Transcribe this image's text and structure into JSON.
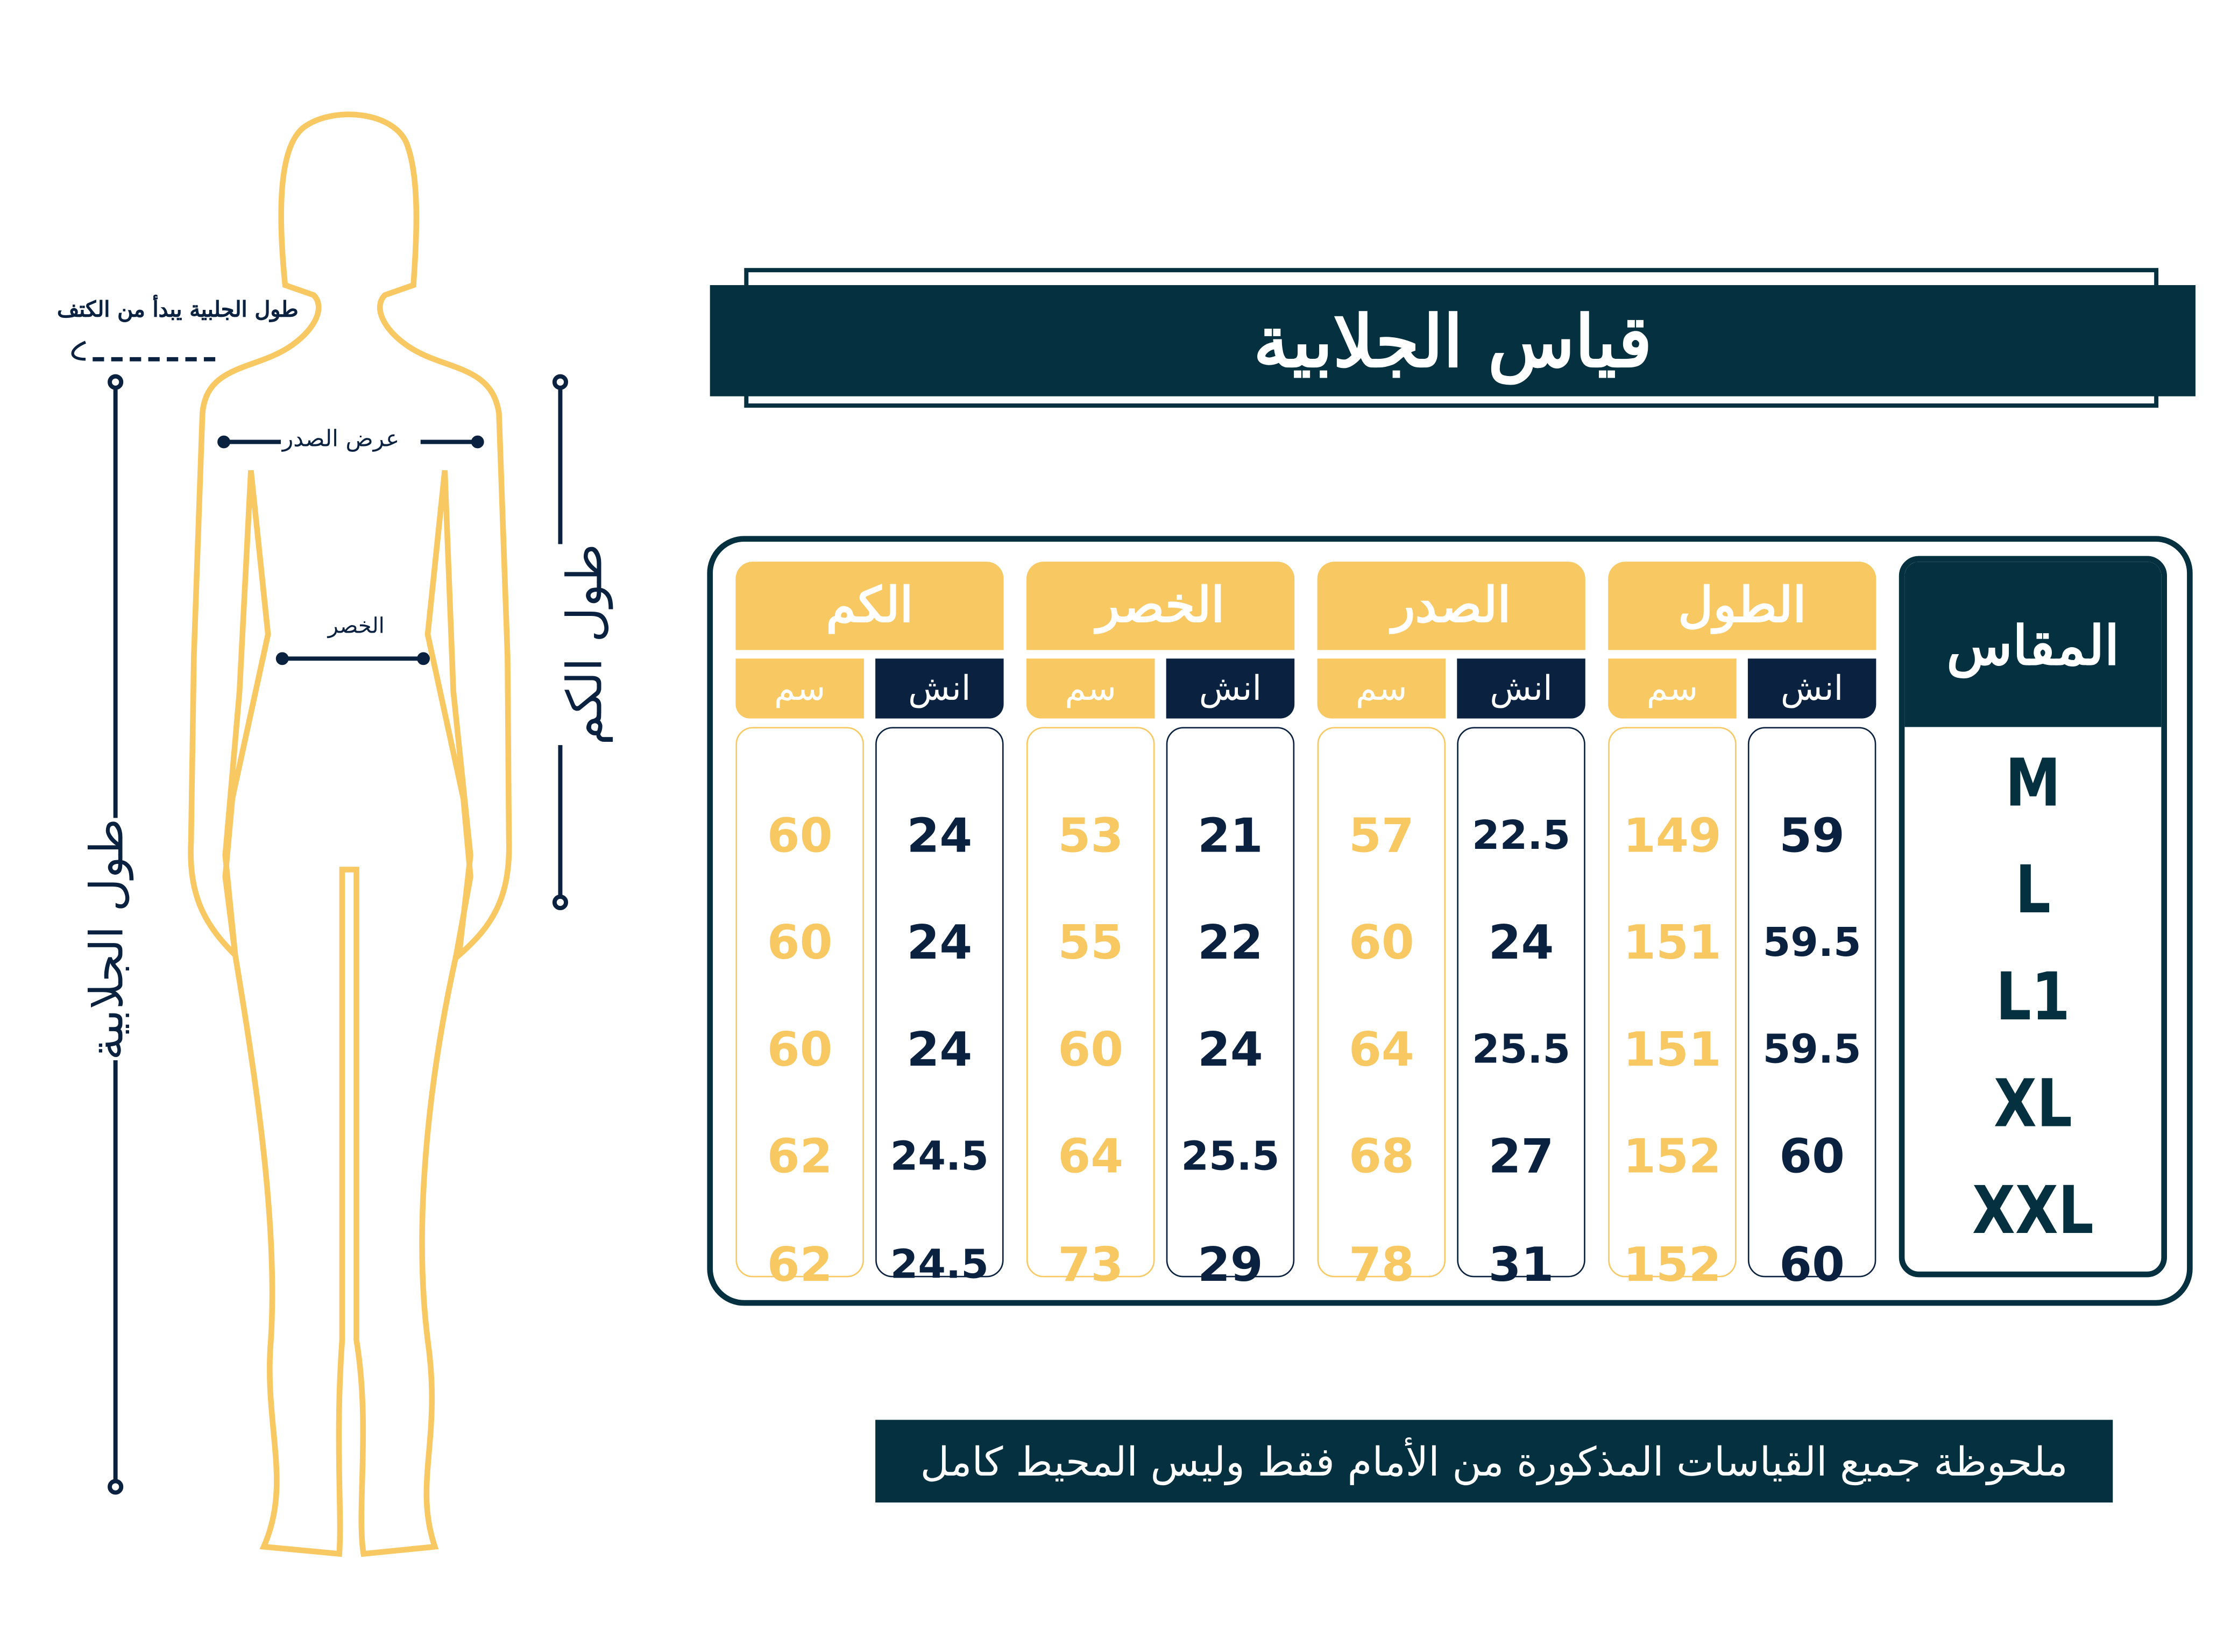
{
  "figure": {
    "shoulder_note": "طول الجلبية يبدأ من الكتف",
    "chest_label": "عرض الصدر",
    "waist_label": "الخصر",
    "sleeve_length_label": "طول الكم",
    "garment_length_label": "طول الجلابية"
  },
  "title": "قياس الجلابية",
  "table": {
    "size_header": "المقاس",
    "sizes": [
      "M",
      "L",
      "L1",
      "XL",
      "XXL"
    ],
    "cm_label": "سم",
    "inch_label": "انش",
    "groups": [
      {
        "header": "الطول",
        "cm": [
          "149",
          "151",
          "151",
          "152",
          "152"
        ],
        "inch": [
          "59",
          "59.5",
          "59.5",
          "60",
          "60"
        ]
      },
      {
        "header": "الصدر",
        "cm": [
          "57",
          "60",
          "64",
          "68",
          "78"
        ],
        "inch": [
          "22.5",
          "24",
          "25.5",
          "27",
          "31"
        ]
      },
      {
        "header": "الخصر",
        "cm": [
          "53",
          "55",
          "60",
          "64",
          "73"
        ],
        "inch": [
          "21",
          "22",
          "24",
          "25.5",
          "29"
        ]
      },
      {
        "header": "الكم",
        "cm": [
          "60",
          "60",
          "60",
          "62",
          "62"
        ],
        "inch": [
          "24",
          "24",
          "24",
          "24.5",
          "24.5"
        ]
      }
    ]
  },
  "note": "ملحوظة جميع القياسات المذكورة من الأمام فقط وليس المحيط كامل",
  "colors": {
    "navy": "#04303f",
    "dark_blue": "#0a2240",
    "yellow": "#f8c862"
  }
}
